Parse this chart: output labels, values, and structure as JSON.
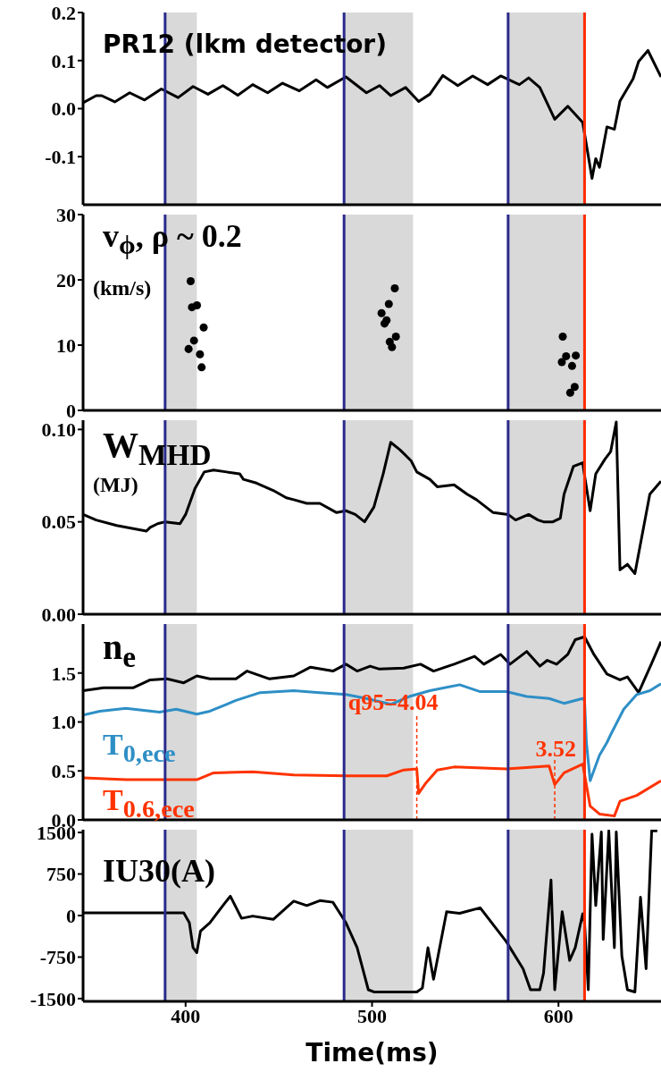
{
  "chart_data": [
    {
      "type": "line",
      "title": "PR12 (lkm detector)",
      "color": "#000000",
      "x": [
        345,
        352,
        355,
        362,
        370,
        378,
        387,
        396,
        404,
        412,
        420,
        428,
        436,
        444,
        452,
        461,
        470,
        476,
        486,
        497,
        504,
        510,
        518,
        525,
        531,
        538,
        546,
        554,
        562,
        569,
        579,
        584,
        590,
        598,
        605,
        613,
        618,
        620,
        622,
        626,
        630,
        633,
        640,
        643,
        648,
        655
      ],
      "values": [
        0.012,
        0.027,
        0.027,
        0.014,
        0.033,
        0.018,
        0.041,
        0.023,
        0.046,
        0.03,
        0.048,
        0.028,
        0.05,
        0.033,
        0.053,
        0.037,
        0.06,
        0.044,
        0.066,
        0.033,
        0.048,
        0.027,
        0.044,
        0.015,
        0.03,
        0.069,
        0.048,
        0.068,
        0.05,
        0.068,
        0.05,
        0.064,
        0.044,
        -0.022,
        0.005,
        -0.029,
        -0.145,
        -0.104,
        -0.122,
        -0.038,
        -0.043,
        0.016,
        0.062,
        0.098,
        0.121,
        0.066
      ],
      "xlim": [
        345,
        655
      ],
      "xticks": [
        400,
        500,
        600
      ],
      "ylim": [
        -0.2,
        0.2
      ],
      "yticks": [
        -0.1,
        {
          "value": 0,
          "label": "0.0"
        },
        0.1,
        0.2
      ],
      "tick_labels": "y",
      "bands": [
        {
          "axis": "x",
          "from": 389,
          "to": 406,
          "color": "#d9d9d9"
        },
        {
          "axis": "x",
          "from": 485,
          "to": 522,
          "color": "#d9d9d9"
        },
        {
          "axis": "x",
          "from": 573,
          "to": 614,
          "color": "#d9d9d9"
        }
      ],
      "ref_lines": [
        {
          "axis": "x",
          "value": 389,
          "color": "#2a2a8c"
        },
        {
          "axis": "x",
          "value": 485,
          "color": "#2a2a8c"
        },
        {
          "axis": "x",
          "value": 573,
          "color": "#2a2a8c"
        },
        {
          "axis": "x",
          "value": 614,
          "color": "#ff2a00"
        }
      ]
    },
    {
      "type": "scatter",
      "title": "v$_{ϕ}$, ρ ~ 0.2",
      "subtitle": "(km/s)",
      "color": "#000000",
      "marker": "circle",
      "x": [
        402.7,
        403.4,
        406.1,
        409.7,
        404.5,
        401.6,
        407.7,
        408.6,
        505.1,
        506.7,
        507.8,
        509,
        512.2,
        509.5,
        512.8,
        510.7,
        602.3,
        601.8,
        604.1,
        607.3,
        609.3,
        608.7,
        606.3
      ],
      "values": [
        19.8,
        15.8,
        16.1,
        12.7,
        10.7,
        9.4,
        8.6,
        6.6,
        14.9,
        13.3,
        13.8,
        16.3,
        18.7,
        10.5,
        11.3,
        9.7,
        11.3,
        7.4,
        8.3,
        6.8,
        8.4,
        3.6,
        2.7
      ],
      "xlim": [
        345,
        655
      ],
      "xticks": [
        400,
        500,
        600
      ],
      "ylim": [
        0,
        30
      ],
      "yticks": [
        0,
        10,
        20,
        30
      ],
      "tick_labels": "y",
      "bands": [
        {
          "axis": "x",
          "from": 389,
          "to": 406,
          "color": "#d9d9d9"
        },
        {
          "axis": "x",
          "from": 485,
          "to": 522,
          "color": "#d9d9d9"
        },
        {
          "axis": "x",
          "from": 573,
          "to": 614,
          "color": "#d9d9d9"
        }
      ],
      "ref_lines": [
        {
          "axis": "x",
          "value": 389,
          "color": "#2a2a8c"
        },
        {
          "axis": "x",
          "value": 485,
          "color": "#2a2a8c"
        },
        {
          "axis": "x",
          "value": 573,
          "color": "#2a2a8c"
        },
        {
          "axis": "x",
          "value": 614,
          "color": "#ff2a00"
        }
      ]
    },
    {
      "type": "line",
      "title": "W$_{MHD}$",
      "subtitle": "(MJ)",
      "color": "#000000",
      "x": [
        345,
        352,
        363,
        379,
        381,
        385,
        389,
        397,
        400,
        405,
        410,
        415,
        422,
        429,
        431,
        438,
        447,
        454,
        458,
        465,
        472,
        481,
        486,
        491,
        496,
        501,
        506,
        510,
        515,
        521,
        524,
        531,
        535,
        544,
        551,
        556,
        565,
        573,
        577,
        584,
        589,
        592,
        597,
        601,
        603,
        608,
        613,
        614,
        617,
        620,
        625,
        628,
        631,
        633,
        637,
        641,
        649,
        655
      ],
      "values": [
        0.054,
        0.051,
        0.048,
        0.045,
        0.047,
        0.049,
        0.05,
        0.049,
        0.054,
        0.068,
        0.077,
        0.078,
        0.077,
        0.076,
        0.073,
        0.071,
        0.067,
        0.063,
        0.062,
        0.06,
        0.06,
        0.055,
        0.056,
        0.054,
        0.05,
        0.058,
        0.076,
        0.093,
        0.089,
        0.083,
        0.077,
        0.073,
        0.069,
        0.07,
        0.065,
        0.062,
        0.055,
        0.054,
        0.051,
        0.054,
        0.051,
        0.05,
        0.05,
        0.052,
        0.065,
        0.08,
        0.082,
        0.075,
        0.056,
        0.076,
        0.084,
        0.088,
        0.104,
        0.024,
        0.027,
        0.022,
        0.065,
        0.072
      ],
      "xlim": [
        345,
        655
      ],
      "xticks": [
        400,
        500,
        600
      ],
      "ylim": [
        0,
        0.105
      ],
      "yticks": [
        {
          "value": 0,
          "label": "0.00"
        },
        0.05,
        {
          "value": 0.1,
          "label": "0.10"
        }
      ],
      "tick_labels": "y",
      "bands": [
        {
          "axis": "x",
          "from": 389,
          "to": 406,
          "color": "#d9d9d9"
        },
        {
          "axis": "x",
          "from": 485,
          "to": 522,
          "color": "#d9d9d9"
        },
        {
          "axis": "x",
          "from": 573,
          "to": 614,
          "color": "#d9d9d9"
        }
      ],
      "ref_lines": [
        {
          "axis": "x",
          "value": 389,
          "color": "#2a2a8c"
        },
        {
          "axis": "x",
          "value": 485,
          "color": "#2a2a8c"
        },
        {
          "axis": "x",
          "value": 573,
          "color": "#2a2a8c"
        },
        {
          "axis": "x",
          "value": 614,
          "color": "#ff2a00"
        }
      ]
    },
    {
      "type": "line",
      "series": [
        {
          "name": "n$_{e}$",
          "color": "#000000",
          "x": [
            345,
            356,
            372,
            381,
            390,
            399,
            406,
            413,
            427,
            433,
            445,
            458,
            467,
            479,
            486,
            492,
            499,
            504,
            517,
            526,
            533,
            544,
            555,
            560,
            569,
            574,
            583,
            590,
            594,
            599,
            605,
            609,
            614,
            619,
            626,
            633,
            637,
            643,
            650,
            655
          ],
          "values": [
            1.32,
            1.35,
            1.35,
            1.43,
            1.44,
            1.4,
            1.47,
            1.44,
            1.44,
            1.52,
            1.44,
            1.47,
            1.56,
            1.52,
            1.59,
            1.52,
            1.57,
            1.54,
            1.55,
            1.59,
            1.52,
            1.59,
            1.67,
            1.59,
            1.69,
            1.59,
            1.72,
            1.57,
            1.63,
            1.59,
            1.69,
            1.84,
            1.87,
            1.69,
            1.49,
            1.43,
            1.46,
            1.3,
            1.6,
            1.82
          ]
        },
        {
          "name": "T$_{0,ece}$",
          "color": "#2e8fc6",
          "x": [
            345,
            354,
            368,
            386,
            395,
            406,
            413,
            427,
            440,
            458,
            472,
            486,
            497,
            510,
            520,
            531,
            547,
            558,
            572,
            583,
            595,
            603,
            613,
            614,
            615,
            617,
            622,
            626,
            628,
            635,
            642,
            649,
            655
          ],
          "values": [
            1.07,
            1.11,
            1.14,
            1.1,
            1.13,
            1.08,
            1.11,
            1.22,
            1.3,
            1.32,
            1.3,
            1.28,
            1.24,
            1.18,
            1.26,
            1.32,
            1.38,
            1.31,
            1.31,
            1.26,
            1.24,
            1.19,
            1.24,
            1.22,
            0.79,
            0.4,
            0.66,
            0.79,
            0.87,
            1.13,
            1.28,
            1.32,
            1.39
          ]
        },
        {
          "name": "T$_{0.6,ece}$",
          "color": "#ff3300",
          "x": [
            345,
            368,
            406,
            415,
            436,
            458,
            486,
            508,
            517,
            524,
            525,
            529,
            535,
            544,
            572,
            595,
            598,
            603,
            613,
            617,
            622,
            630,
            633,
            642,
            655
          ],
          "values": [
            0.43,
            0.41,
            0.41,
            0.48,
            0.49,
            0.46,
            0.45,
            0.45,
            0.51,
            0.52,
            0.27,
            0.38,
            0.51,
            0.54,
            0.52,
            0.55,
            0.36,
            0.48,
            0.57,
            0.14,
            0.06,
            0.04,
            0.19,
            0.25,
            0.4
          ]
        }
      ],
      "annotations": [
        {
          "text": "q95=4.04",
          "x": 524,
          "y": 0.52
        },
        {
          "text": "3.52",
          "x": 598,
          "y": 0.36
        }
      ],
      "xlim": [
        345,
        655
      ],
      "xticks": [
        400,
        500,
        600
      ],
      "ylim": [
        0,
        2
      ],
      "yticks": [
        {
          "value": 0,
          "label": "0.0"
        },
        0.5,
        {
          "value": 1,
          "label": "1.0"
        },
        1.5
      ],
      "tick_labels": "y",
      "bands": [
        {
          "axis": "x",
          "from": 389,
          "to": 406,
          "color": "#d9d9d9"
        },
        {
          "axis": "x",
          "from": 485,
          "to": 522,
          "color": "#d9d9d9"
        },
        {
          "axis": "x",
          "from": 573,
          "to": 614,
          "color": "#d9d9d9"
        }
      ],
      "ref_lines": [
        {
          "axis": "x",
          "value": 389,
          "color": "#2a2a8c"
        },
        {
          "axis": "x",
          "value": 485,
          "color": "#2a2a8c"
        },
        {
          "axis": "x",
          "value": 573,
          "color": "#2a2a8c"
        },
        {
          "axis": "x",
          "value": 614,
          "color": "#ff2a00"
        }
      ]
    },
    {
      "type": "line",
      "title": "IU30(A)",
      "xlabel": "Time(ms)",
      "color": "#000000",
      "x": [
        345,
        399,
        402,
        404,
        406,
        408,
        413,
        420,
        424,
        430,
        436,
        447,
        458,
        465,
        472,
        479,
        486,
        492,
        498,
        501,
        524,
        527,
        530,
        533,
        540,
        547,
        558,
        572,
        581,
        585,
        590,
        592,
        596,
        598,
        602,
        606,
        609,
        613,
        614,
        616,
        618,
        620,
        623,
        624,
        627,
        630,
        631,
        634,
        637,
        641,
        644,
        647,
        650,
        653
      ],
      "values": [
        50,
        50,
        -130,
        -580,
        -670,
        -280,
        -130,
        180,
        350,
        -50,
        -10,
        -70,
        260,
        180,
        270,
        240,
        -130,
        -580,
        -1340,
        -1380,
        -1380,
        -1310,
        -580,
        -1150,
        70,
        40,
        140,
        -470,
        -960,
        -1340,
        -1340,
        -1040,
        640,
        -1340,
        70,
        -810,
        -580,
        30,
        -130,
        -1340,
        1470,
        180,
        1510,
        -430,
        1530,
        -580,
        1510,
        -730,
        -1340,
        -1380,
        330,
        -960,
        1530,
        1530
      ],
      "xlim": [
        345,
        655
      ],
      "xticks": [
        400,
        500,
        600
      ],
      "ylim": [
        -1550,
        1550
      ],
      "yticks": [
        -1500,
        -750,
        0,
        750,
        1500
      ],
      "bands": [
        {
          "axis": "x",
          "from": 389,
          "to": 406,
          "color": "#d9d9d9"
        },
        {
          "axis": "x",
          "from": 485,
          "to": 522,
          "color": "#d9d9d9"
        },
        {
          "axis": "x",
          "from": 573,
          "to": 614,
          "color": "#d9d9d9"
        }
      ],
      "ref_lines": [
        {
          "axis": "x",
          "value": 389,
          "color": "#2a2a8c"
        },
        {
          "axis": "x",
          "value": 485,
          "color": "#2a2a8c"
        },
        {
          "axis": "x",
          "value": 573,
          "color": "#2a2a8c"
        },
        {
          "axis": "x",
          "value": 614,
          "color": "#ff2a00"
        }
      ]
    }
  ]
}
